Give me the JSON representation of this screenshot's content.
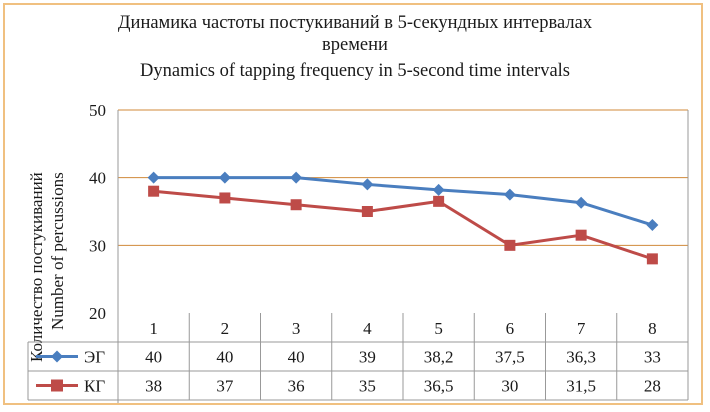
{
  "chart_data": {
    "type": "line",
    "title_ru": "Динамика частоты постукиваний в 5-секундных интервалах",
    "title_ru_2": "времени",
    "title_en": "Dynamics of tapping frequency in 5-second time intervals",
    "ylabel_ru": "Количество постукиваний",
    "ylabel_en": "Number of percussions",
    "ylim": [
      20,
      50
    ],
    "yticks": [
      "20",
      "30",
      "40",
      "50"
    ],
    "categories": [
      "1",
      "2",
      "3",
      "4",
      "5",
      "6",
      "7",
      "8"
    ],
    "grid": true,
    "series": [
      {
        "name": "ЭГ",
        "color": "#4a7ebf",
        "marker": "diamond",
        "values": [
          40,
          40,
          40,
          39,
          38.2,
          37.5,
          36.3,
          33
        ],
        "labels": [
          "40",
          "40",
          "40",
          "39",
          "38,2",
          "37,5",
          "36,3",
          "33"
        ]
      },
      {
        "name": "КГ",
        "color": "#be4b48",
        "marker": "square",
        "values": [
          38,
          37,
          36,
          35,
          36.5,
          30,
          31.5,
          28
        ],
        "labels": [
          "38",
          "37",
          "36",
          "35",
          "36,5",
          "30",
          "31,5",
          "28"
        ]
      }
    ]
  }
}
